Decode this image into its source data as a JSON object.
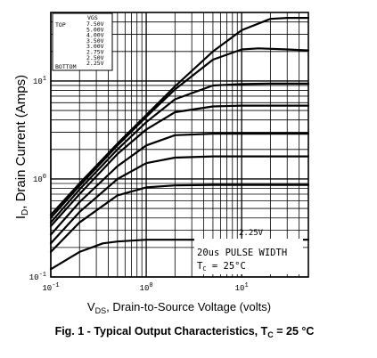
{
  "chart_data": {
    "type": "line",
    "x_scale": "log",
    "y_scale": "log",
    "xlim": [
      0.1,
      50
    ],
    "ylim": [
      0.1,
      50
    ],
    "grid": true,
    "legend_placement": "top-left",
    "xlabel_main": "V",
    "xlabel_sub": "DS",
    "xlabel_rest": ", Drain-to-Source Voltage (volts)",
    "ylabel_main": "I",
    "ylabel_sub": "D",
    "ylabel_rest": ", Drain Current (Amps)",
    "x_ticks": [
      {
        "value": 0.1,
        "base": "10",
        "exp": "-1"
      },
      {
        "value": 1,
        "base": "10",
        "exp": "0"
      },
      {
        "value": 10,
        "base": "10",
        "exp": "1"
      }
    ],
    "y_ticks": [
      {
        "value": 0.1,
        "base": "10",
        "exp": "-1"
      },
      {
        "value": 1,
        "base": "10",
        "exp": "0"
      },
      {
        "value": 10,
        "base": "10",
        "exp": "1"
      }
    ],
    "legend": {
      "header": "VGS",
      "top_label": "TOP",
      "bottom_label": "BOTTOM",
      "entries": [
        "7.50V",
        "5.00V",
        "4.00V",
        "3.50V",
        "3.00V",
        "2.75V",
        "2.50V",
        "2.25V"
      ]
    },
    "curve_label": "2.25V",
    "annotation_pulse": "20us PULSE WIDTH",
    "annotation_tc_main": "T",
    "annotation_tc_sub": "C",
    "annotation_tc_rest": " = 25°C",
    "series": [
      {
        "name": "7.50V",
        "points": [
          [
            0.1,
            0.43
          ],
          [
            0.2,
            0.9
          ],
          [
            0.5,
            2.3
          ],
          [
            1,
            4.5
          ],
          [
            2,
            8.8
          ],
          [
            5,
            20
          ],
          [
            10,
            33
          ],
          [
            20,
            43
          ],
          [
            30,
            44
          ],
          [
            50,
            44
          ]
        ]
      },
      {
        "name": "5.00V",
        "points": [
          [
            0.1,
            0.4
          ],
          [
            0.2,
            0.85
          ],
          [
            0.5,
            2.2
          ],
          [
            1,
            4.3
          ],
          [
            2,
            8.2
          ],
          [
            5,
            16.5
          ],
          [
            10,
            21
          ],
          [
            15,
            21.5
          ],
          [
            30,
            21
          ],
          [
            50,
            20.5
          ]
        ]
      },
      {
        "name": "4.00V",
        "points": [
          [
            0.1,
            0.36
          ],
          [
            0.2,
            0.78
          ],
          [
            0.5,
            2.0
          ],
          [
            1,
            3.8
          ],
          [
            2,
            6.5
          ],
          [
            5,
            9.0
          ],
          [
            10,
            9.3
          ],
          [
            20,
            9.4
          ],
          [
            50,
            9.4
          ]
        ]
      },
      {
        "name": "3.50V",
        "points": [
          [
            0.1,
            0.33
          ],
          [
            0.2,
            0.7
          ],
          [
            0.5,
            1.8
          ],
          [
            1,
            3.2
          ],
          [
            2,
            4.8
          ],
          [
            5,
            5.5
          ],
          [
            10,
            5.6
          ],
          [
            50,
            5.6
          ]
        ]
      },
      {
        "name": "3.00V",
        "points": [
          [
            0.1,
            0.27
          ],
          [
            0.2,
            0.58
          ],
          [
            0.5,
            1.35
          ],
          [
            1,
            2.2
          ],
          [
            2,
            2.8
          ],
          [
            5,
            2.9
          ],
          [
            10,
            2.9
          ],
          [
            50,
            2.9
          ]
        ]
      },
      {
        "name": "2.75V",
        "points": [
          [
            0.1,
            0.22
          ],
          [
            0.2,
            0.46
          ],
          [
            0.5,
            1.0
          ],
          [
            1,
            1.45
          ],
          [
            2,
            1.65
          ],
          [
            5,
            1.7
          ],
          [
            50,
            1.7
          ]
        ]
      },
      {
        "name": "2.50V",
        "points": [
          [
            0.1,
            0.18
          ],
          [
            0.2,
            0.36
          ],
          [
            0.5,
            0.68
          ],
          [
            1,
            0.82
          ],
          [
            2,
            0.86
          ],
          [
            5,
            0.87
          ],
          [
            50,
            0.87
          ]
        ]
      },
      {
        "name": "2.25V",
        "points": [
          [
            0.1,
            0.12
          ],
          [
            0.2,
            0.18
          ],
          [
            0.35,
            0.22
          ],
          [
            0.5,
            0.23
          ],
          [
            1,
            0.24
          ],
          [
            50,
            0.24
          ]
        ]
      }
    ],
    "caption_main": "Fig. 1 - Typical Output Characteristics, T",
    "caption_sub": "C",
    "caption_rest": " = 25 °C"
  }
}
